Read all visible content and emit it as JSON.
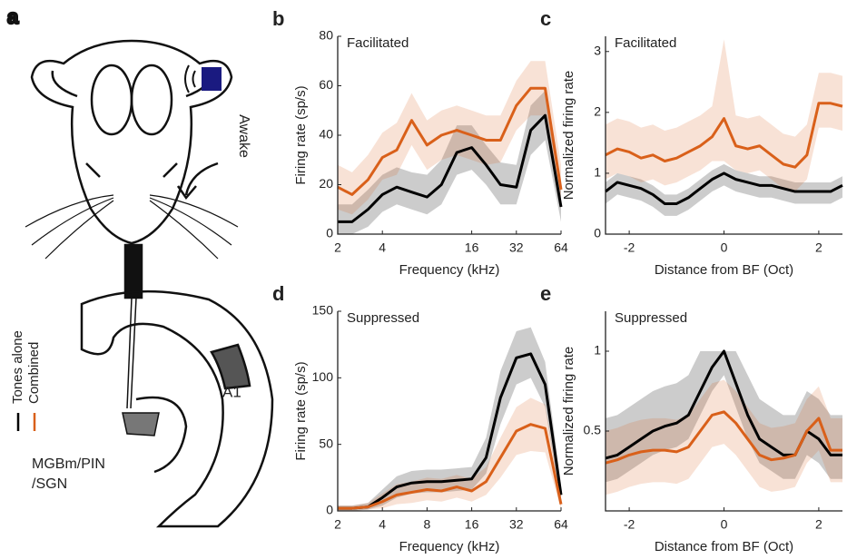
{
  "diagram": {
    "label": "a",
    "state": "Awake",
    "area": "A1",
    "nucleus": [
      "MGBm/PIN",
      "/SGN"
    ]
  },
  "chart_data": [
    {
      "type": "line",
      "panel_label": "b",
      "title": "Facilitated",
      "xlabel": "Frequency (kHz)",
      "ylabel": "Firing rate (sp/s)",
      "xscale": "log",
      "x": [
        2,
        2.5,
        3.2,
        4,
        5,
        6.3,
        8,
        10,
        12.7,
        16,
        20,
        25,
        32,
        40,
        50,
        64
      ],
      "xlim": [
        2,
        64
      ],
      "xticks": [
        2,
        4,
        16,
        32,
        64
      ],
      "ylim": [
        0,
        80
      ],
      "yticks": [
        0,
        20,
        40,
        60,
        80
      ],
      "series": [
        {
          "name": "Tones alone",
          "color": "#000000",
          "values": [
            5,
            5,
            10,
            16,
            19,
            17,
            15,
            20,
            33,
            35,
            28,
            20,
            19,
            42,
            48,
            11
          ],
          "lower": [
            0,
            0,
            3,
            9,
            12,
            10,
            8,
            12,
            24,
            26,
            20,
            12,
            12,
            32,
            38,
            5
          ],
          "upper": [
            12,
            12,
            18,
            24,
            27,
            25,
            24,
            30,
            44,
            44,
            36,
            29,
            28,
            52,
            58,
            18
          ]
        },
        {
          "name": "Combined",
          "color": "#d9601a",
          "values": [
            19,
            16,
            22,
            31,
            34,
            46,
            36,
            40,
            42,
            40,
            38,
            38,
            52,
            59,
            59,
            18
          ],
          "lower": [
            10,
            8,
            14,
            22,
            24,
            36,
            26,
            30,
            32,
            30,
            28,
            29,
            42,
            48,
            48,
            10
          ],
          "upper": [
            28,
            25,
            32,
            41,
            45,
            57,
            46,
            50,
            52,
            50,
            48,
            48,
            62,
            70,
            70,
            28
          ]
        }
      ]
    },
    {
      "type": "line",
      "panel_label": "c",
      "title": "Facilitated",
      "xlabel": "Distance from BF (Oct)",
      "ylabel": "Normalized firing rate",
      "xscale": "linear",
      "x": [
        -2.5,
        -2.25,
        -2,
        -1.75,
        -1.5,
        -1.25,
        -1,
        -0.75,
        -0.5,
        -0.25,
        0,
        0.25,
        0.5,
        0.75,
        1,
        1.25,
        1.5,
        1.75,
        2,
        2.25,
        2.5
      ],
      "xlim": [
        -2.5,
        2.5
      ],
      "xticks": [
        -2,
        0,
        2
      ],
      "ylim": [
        0,
        3.25
      ],
      "yticks": [
        0,
        1,
        2,
        3
      ],
      "series": [
        {
          "name": "Tones alone",
          "color": "#000000",
          "values": [
            0.7,
            0.85,
            0.8,
            0.75,
            0.65,
            0.5,
            0.5,
            0.6,
            0.75,
            0.9,
            1.0,
            0.9,
            0.85,
            0.8,
            0.8,
            0.75,
            0.7,
            0.7,
            0.7,
            0.7,
            0.8
          ],
          "lower": [
            0.5,
            0.65,
            0.6,
            0.55,
            0.45,
            0.3,
            0.3,
            0.4,
            0.55,
            0.7,
            0.8,
            0.7,
            0.65,
            0.6,
            0.6,
            0.55,
            0.5,
            0.5,
            0.5,
            0.5,
            0.6
          ],
          "upper": [
            0.85,
            1.0,
            0.95,
            0.9,
            0.8,
            0.65,
            0.65,
            0.75,
            0.9,
            1.05,
            1.15,
            1.05,
            1.0,
            0.95,
            0.95,
            0.9,
            0.85,
            0.85,
            0.85,
            0.85,
            0.95
          ]
        },
        {
          "name": "Combined",
          "color": "#d9601a",
          "values": [
            1.3,
            1.4,
            1.35,
            1.25,
            1.3,
            1.2,
            1.25,
            1.35,
            1.45,
            1.6,
            1.9,
            1.45,
            1.4,
            1.45,
            1.3,
            1.15,
            1.1,
            1.3,
            2.15,
            2.15,
            2.1
          ],
          "lower": [
            0.9,
            1.0,
            0.95,
            0.85,
            0.9,
            0.8,
            0.85,
            0.95,
            1.05,
            1.2,
            1.2,
            1.05,
            1.0,
            1.05,
            0.9,
            0.75,
            0.7,
            0.9,
            1.75,
            1.75,
            1.7
          ],
          "upper": [
            1.8,
            1.9,
            1.85,
            1.75,
            1.8,
            1.7,
            1.75,
            1.85,
            1.95,
            2.1,
            3.2,
            1.95,
            1.9,
            1.95,
            1.8,
            1.65,
            1.6,
            1.8,
            2.65,
            2.65,
            2.6
          ]
        }
      ]
    },
    {
      "type": "line",
      "panel_label": "d",
      "title": "Suppressed",
      "xlabel": "Frequency (kHz)",
      "ylabel": "Firing rate (sp/s)",
      "xscale": "log",
      "x": [
        2,
        2.5,
        3.2,
        4,
        5,
        6.3,
        8,
        10,
        12.7,
        16,
        20,
        25,
        32,
        40,
        50,
        64
      ],
      "xlim": [
        2,
        64
      ],
      "xticks": [
        2,
        4,
        8,
        16,
        32,
        64
      ],
      "ylim": [
        0,
        150
      ],
      "yticks": [
        0,
        50,
        100,
        150
      ],
      "series": [
        {
          "name": "Tones alone",
          "color": "#000000",
          "values": [
            2,
            2,
            3,
            10,
            18,
            21,
            22,
            22,
            23,
            24,
            40,
            85,
            115,
            118,
            95,
            12
          ],
          "lower": [
            0,
            0,
            1,
            4,
            10,
            13,
            14,
            14,
            15,
            16,
            28,
            65,
            95,
            100,
            78,
            5
          ],
          "upper": [
            4,
            4,
            6,
            16,
            26,
            30,
            31,
            31,
            32,
            33,
            55,
            105,
            135,
            138,
            112,
            20
          ]
        },
        {
          "name": "Combined",
          "color": "#d9601a",
          "values": [
            2,
            2,
            3,
            7,
            12,
            14,
            16,
            15,
            18,
            15,
            22,
            40,
            60,
            65,
            62,
            5
          ],
          "lower": [
            0,
            0,
            1,
            2,
            5,
            6,
            8,
            7,
            10,
            7,
            12,
            25,
            42,
            45,
            44,
            1
          ],
          "upper": [
            4,
            4,
            6,
            13,
            20,
            22,
            25,
            24,
            27,
            24,
            33,
            55,
            78,
            85,
            80,
            10
          ]
        }
      ]
    },
    {
      "type": "line",
      "panel_label": "e",
      "title": "Suppressed",
      "xlabel": "Distance from BF (Oct)",
      "ylabel": "Normalized firing rate",
      "xscale": "linear",
      "x": [
        -2.5,
        -2.25,
        -2,
        -1.75,
        -1.5,
        -1.25,
        -1,
        -0.75,
        -0.5,
        -0.25,
        0,
        0.25,
        0.5,
        0.75,
        1,
        1.25,
        1.5,
        1.75,
        2,
        2.25,
        2.5
      ],
      "xlim": [
        -2.5,
        2.5
      ],
      "xticks": [
        -2,
        0,
        2
      ],
      "ylim": [
        0,
        1.25
      ],
      "yticks": [
        0.5,
        1
      ],
      "series": [
        {
          "name": "Tones alone",
          "color": "#000000",
          "values": [
            0.33,
            0.35,
            0.4,
            0.45,
            0.5,
            0.53,
            0.55,
            0.6,
            0.75,
            0.9,
            1.0,
            0.8,
            0.6,
            0.45,
            0.4,
            0.35,
            0.35,
            0.5,
            0.45,
            0.35,
            0.35
          ],
          "lower": [
            0.18,
            0.2,
            0.25,
            0.3,
            0.35,
            0.38,
            0.4,
            0.45,
            0.6,
            0.75,
            0.85,
            0.65,
            0.45,
            0.3,
            0.25,
            0.2,
            0.2,
            0.35,
            0.3,
            0.2,
            0.2
          ],
          "upper": [
            0.58,
            0.6,
            0.65,
            0.7,
            0.75,
            0.78,
            0.8,
            0.85,
            1.0,
            1.0,
            1.0,
            1.0,
            0.85,
            0.7,
            0.65,
            0.6,
            0.6,
            0.75,
            0.7,
            0.6,
            0.6
          ]
        },
        {
          "name": "Combined",
          "color": "#d9601a",
          "values": [
            0.3,
            0.32,
            0.35,
            0.37,
            0.38,
            0.38,
            0.37,
            0.4,
            0.5,
            0.6,
            0.62,
            0.55,
            0.45,
            0.35,
            0.32,
            0.33,
            0.35,
            0.5,
            0.58,
            0.38,
            0.38
          ],
          "lower": [
            0.1,
            0.12,
            0.15,
            0.17,
            0.18,
            0.18,
            0.17,
            0.2,
            0.3,
            0.4,
            0.42,
            0.35,
            0.25,
            0.15,
            0.12,
            0.13,
            0.15,
            0.3,
            0.38,
            0.18,
            0.18
          ],
          "upper": [
            0.5,
            0.52,
            0.55,
            0.57,
            0.58,
            0.58,
            0.57,
            0.6,
            0.7,
            0.8,
            0.82,
            0.75,
            0.65,
            0.55,
            0.52,
            0.53,
            0.55,
            0.7,
            0.78,
            0.58,
            0.58
          ]
        }
      ]
    }
  ]
}
